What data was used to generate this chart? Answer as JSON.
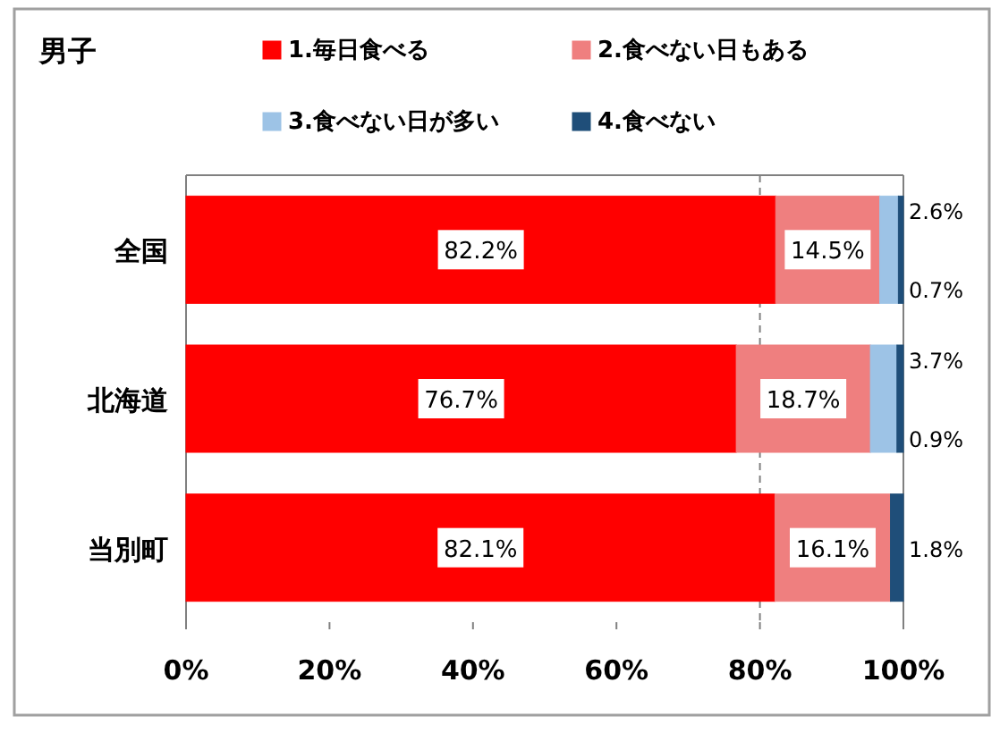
{
  "chart_data": {
    "type": "bar",
    "orientation": "horizontal",
    "stacked": true,
    "title": "男子",
    "legend": "top",
    "categories": [
      "全国",
      "北海道",
      "当別町"
    ],
    "series": [
      {
        "name": "1.毎日食べる",
        "color": "#ff0000",
        "values": [
          82.2,
          76.7,
          82.1
        ],
        "value_labels": [
          "82.2%",
          "76.7%",
          "82.1%"
        ]
      },
      {
        "name": "2.食べない日もある",
        "color": "#ef7f7f",
        "values": [
          14.5,
          18.7,
          16.1
        ],
        "value_labels": [
          "14.5%",
          "18.7%",
          "16.1%"
        ]
      },
      {
        "name": "3.食べない日が多い",
        "color": "#9dc3e6",
        "values": [
          2.6,
          3.7,
          0
        ],
        "value_labels": [
          "2.6%",
          "3.7%",
          null
        ]
      },
      {
        "name": "4.食べない",
        "color": "#1f4e79",
        "values": [
          0.7,
          0.9,
          1.8
        ],
        "value_labels": [
          "0.7%",
          "0.9%",
          "1.8%"
        ]
      }
    ],
    "xlim": [
      0,
      100
    ],
    "xticks": [
      {
        "value": 0,
        "label": "0%"
      },
      {
        "value": 20,
        "label": "20%"
      },
      {
        "value": 40,
        "label": "40%"
      },
      {
        "value": 60,
        "label": "60%"
      },
      {
        "value": 80,
        "label": "80%"
      },
      {
        "value": 100,
        "label": "100%"
      }
    ],
    "ref_lines": [
      {
        "axis": "x",
        "value": 80,
        "label": null,
        "color": "#808080",
        "line_style": "dashed"
      }
    ]
  }
}
